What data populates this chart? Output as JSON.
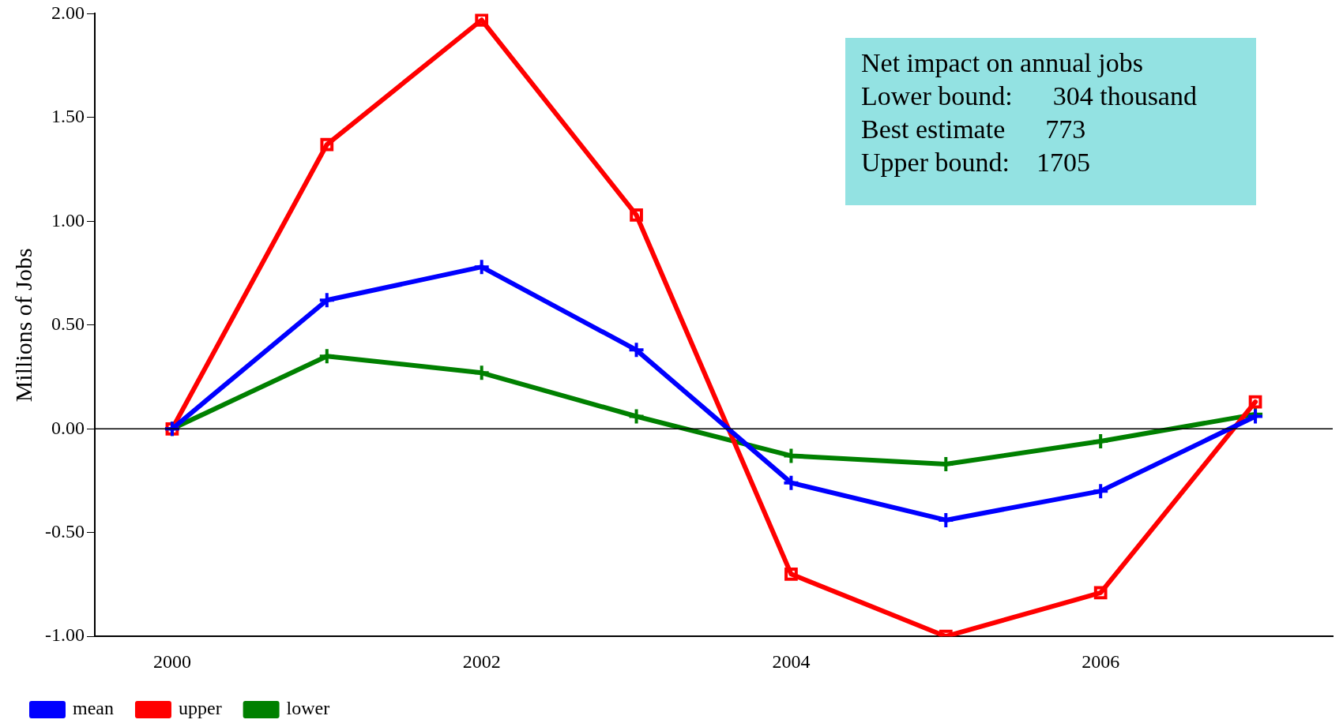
{
  "chart_data": {
    "type": "line",
    "ylabel": "Millions of Jobs",
    "x": [
      2000,
      2001,
      2002,
      2003,
      2004,
      2005,
      2006,
      2007
    ],
    "series": [
      {
        "name": "mean",
        "color": "#0000ff",
        "marker": "cross",
        "values": [
          0,
          0.62,
          0.78,
          0.38,
          -0.26,
          -0.44,
          -0.3,
          0.06
        ]
      },
      {
        "name": "upper",
        "color": "#ff0000",
        "marker": "square",
        "values": [
          0,
          1.37,
          1.97,
          1.03,
          -0.7,
          -1.0,
          -0.79,
          0.13
        ]
      },
      {
        "name": "lower",
        "color": "#008000",
        "marker": "cross",
        "values": [
          0,
          0.35,
          0.27,
          0.06,
          -0.13,
          -0.17,
          -0.06,
          0.07
        ]
      }
    ],
    "xlim": [
      1999.5,
      2007.5
    ],
    "xticks": [
      2000,
      2002,
      2004,
      2006
    ],
    "ylim": [
      -1,
      2
    ],
    "yticks": [
      {
        "value": -1,
        "label": "-1.00"
      },
      {
        "value": -0.5,
        "label": "-0.50"
      },
      {
        "value": 0,
        "label": "0.00"
      },
      {
        "value": 0.5,
        "label": "0.50"
      },
      {
        "value": 1,
        "label": "1.00"
      },
      {
        "value": 1.5,
        "label": "1.50"
      },
      {
        "value": 2,
        "label": "2.00"
      }
    ],
    "ref_lines": [
      {
        "axis": "y",
        "value": 0,
        "color": "#000000"
      }
    ],
    "annotations": [
      "Net impact on annual jobs",
      "Lower bound:      304 thousand",
      "Best estimate      773",
      "Upper bound:    1705"
    ],
    "grid": false,
    "legend": "bottom left",
    "line_style": "solid"
  }
}
